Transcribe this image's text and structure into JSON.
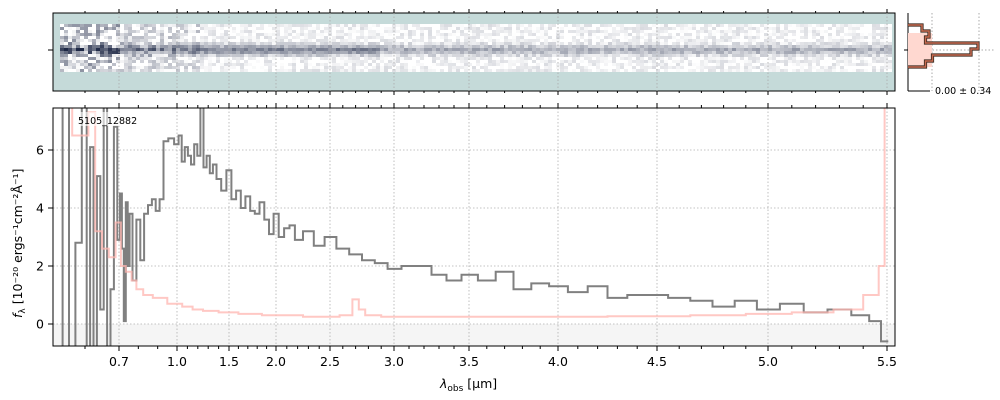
{
  "chart_data": {
    "type": "line",
    "object_label": "5105_12882",
    "xlabel": "λ_obs [μm]",
    "xlabel_main": "λ",
    "xlabel_sub": "obs",
    "xlabel_unit": " [μm]",
    "ylabel": "f_λ [10^-20 ergs^-1 cm^-2 Å^-1]",
    "ylabel_main": "f",
    "ylabel_sub": "λ",
    "ylabel_rest": " [10⁻²⁰ ergs⁻¹cm⁻²Å⁻¹]",
    "xticks": [
      0.7,
      1.0,
      1.5,
      2.0,
      2.5,
      3.0,
      3.5,
      4.0,
      4.5,
      5.0,
      5.5
    ],
    "xtick_labels": [
      "0.7",
      "1.0",
      "1.5",
      "2.0",
      "2.5",
      "3.0",
      "3.5",
      "4.0",
      "4.5",
      "5.0",
      "5.5"
    ],
    "yticks": [
      0,
      2,
      4,
      6
    ],
    "ytick_labels": [
      "0",
      "2",
      "4",
      "6"
    ],
    "xlim": [
      0.55,
      5.53
    ],
    "ylim": [
      -0.76,
      7.45
    ],
    "grid": true,
    "series": [
      {
        "name": "flux",
        "color": "#808080",
        "x": [
          0.56,
          0.57,
          0.58,
          0.59,
          0.6,
          0.61,
          0.62,
          0.63,
          0.64,
          0.65,
          0.66,
          0.67,
          0.68,
          0.69,
          0.7,
          0.71,
          0.72,
          0.73,
          0.74,
          0.75,
          0.76,
          0.78,
          0.8,
          0.82,
          0.84,
          0.86,
          0.88,
          0.9,
          0.92,
          0.94,
          0.97,
          1.0,
          1.03,
          1.06,
          1.09,
          1.12,
          1.15,
          1.18,
          1.21,
          1.24,
          1.27,
          1.3,
          1.33,
          1.36,
          1.4,
          1.45,
          1.5,
          1.55,
          1.6,
          1.65,
          1.7,
          1.75,
          1.8,
          1.85,
          1.9,
          1.95,
          2.0,
          2.05,
          2.1,
          2.15,
          2.2,
          2.3,
          2.4,
          2.5,
          2.6,
          2.7,
          2.8,
          2.9,
          3.0,
          3.1,
          3.2,
          3.3,
          3.4,
          3.5,
          3.6,
          3.7,
          3.8,
          3.9,
          4.0,
          4.1,
          4.2,
          4.3,
          4.4,
          4.5,
          4.6,
          4.7,
          4.8,
          4.9,
          5.0,
          5.1,
          5.2,
          5.3,
          5.4,
          5.45,
          5.5
        ],
        "y": [
          -0.8,
          7.5,
          -0.8,
          2.8,
          7.5,
          -0.8,
          6.1,
          -0.8,
          5.1,
          0.5,
          7.5,
          -0.8,
          1.2,
          6.8,
          2.9,
          4.5,
          2.6,
          0.1,
          4.2,
          2.0,
          3.8,
          1.5,
          3.6,
          2.2,
          3.8,
          4.1,
          4.3,
          3.9,
          4.3,
          6.3,
          6.4,
          6.2,
          6.5,
          5.6,
          6.1,
          5.8,
          5.5,
          6.2,
          5.8,
          7.5,
          5.4,
          5.8,
          5.2,
          5.5,
          5.0,
          4.6,
          5.3,
          4.3,
          4.6,
          4.0,
          4.4,
          3.9,
          3.8,
          4.2,
          3.6,
          3.1,
          3.8,
          3.0,
          3.3,
          3.4,
          2.9,
          3.2,
          2.7,
          3.0,
          2.6,
          2.4,
          2.2,
          2.1,
          1.9,
          2.0,
          2.0,
          1.7,
          1.5,
          1.7,
          1.5,
          1.8,
          1.2,
          1.4,
          1.3,
          1.1,
          1.3,
          0.9,
          1.0,
          1.0,
          0.9,
          0.8,
          0.6,
          0.8,
          0.5,
          0.7,
          0.4,
          0.5,
          0.3,
          0.1,
          -0.6
        ]
      },
      {
        "name": "uncertainty",
        "color": "#ffb6b0",
        "x": [
          0.56,
          0.6,
          0.62,
          0.64,
          0.66,
          0.68,
          0.7,
          0.72,
          0.75,
          0.78,
          0.8,
          0.85,
          0.9,
          1.0,
          1.1,
          1.2,
          1.3,
          1.5,
          1.7,
          2.0,
          2.5,
          2.65,
          2.7,
          2.75,
          2.8,
          3.0,
          3.5,
          4.0,
          4.5,
          4.8,
          5.0,
          5.2,
          5.35,
          5.45,
          5.48,
          5.5
        ],
        "y": [
          7.5,
          6.5,
          7.3,
          3.2,
          2.6,
          2.3,
          3.5,
          2.0,
          1.8,
          1.5,
          1.2,
          1.0,
          0.9,
          0.7,
          0.6,
          0.5,
          0.45,
          0.4,
          0.35,
          0.3,
          0.25,
          0.3,
          0.85,
          0.5,
          0.3,
          0.25,
          0.25,
          0.25,
          0.27,
          0.3,
          0.35,
          0.4,
          0.5,
          1.0,
          2.0,
          7.5
        ]
      }
    ],
    "histogram": {
      "label": "0.00 ± 0.34",
      "counts": [
        0.2,
        0.3,
        0.25,
        1.0,
        0.9,
        0.35,
        0.25
      ]
    }
  }
}
